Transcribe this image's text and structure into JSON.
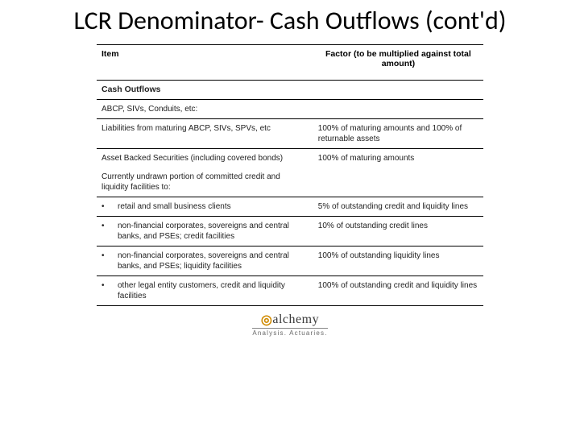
{
  "title": "LCR Denominator- Cash Outflows (cont'd)",
  "table": {
    "columns": [
      "Item",
      "Factor (to be multiplied against total amount)"
    ],
    "section_label": "Cash Outflows",
    "rows": [
      {
        "item": "ABCP, SIVs, Conduits, etc:",
        "factor": "",
        "section": false,
        "bullet": false
      },
      {
        "item": "Liabilities from maturing ABCP, SIVs, SPVs, etc",
        "factor": "100% of maturing amounts and 100% of returnable assets",
        "section": false,
        "bullet": false
      },
      {
        "item": "Asset Backed Securities (including covered bonds)",
        "factor": "100% of maturing amounts",
        "section": false,
        "bullet": false,
        "merged": true
      },
      {
        "item": "Currently undrawn portion of committed credit and liquidity facilities to:",
        "factor": "",
        "section": false,
        "bullet": false,
        "merged_next": true
      },
      {
        "item": "retail and small business clients",
        "factor": "5% of outstanding credit and liquidity lines",
        "section": false,
        "bullet": true
      },
      {
        "item": "non-financial corporates, sovereigns and central banks, and PSEs; credit facilities",
        "factor": "10% of outstanding credit lines",
        "section": false,
        "bullet": true
      },
      {
        "item": "non-financial corporates, sovereigns and central banks, and PSEs; liquidity facilities",
        "factor": "100% of outstanding liquidity lines",
        "section": false,
        "bullet": true
      },
      {
        "item": "other legal entity customers, credit and liquidity facilities",
        "factor": "100% of outstanding credit and liquidity lines",
        "section": false,
        "bullet": true
      }
    ],
    "border_color": "#000000",
    "font_size_header": 10.5,
    "font_size_body": 10
  },
  "logo": {
    "main": "alchemy",
    "sub": "Analysis. Actuaries."
  }
}
